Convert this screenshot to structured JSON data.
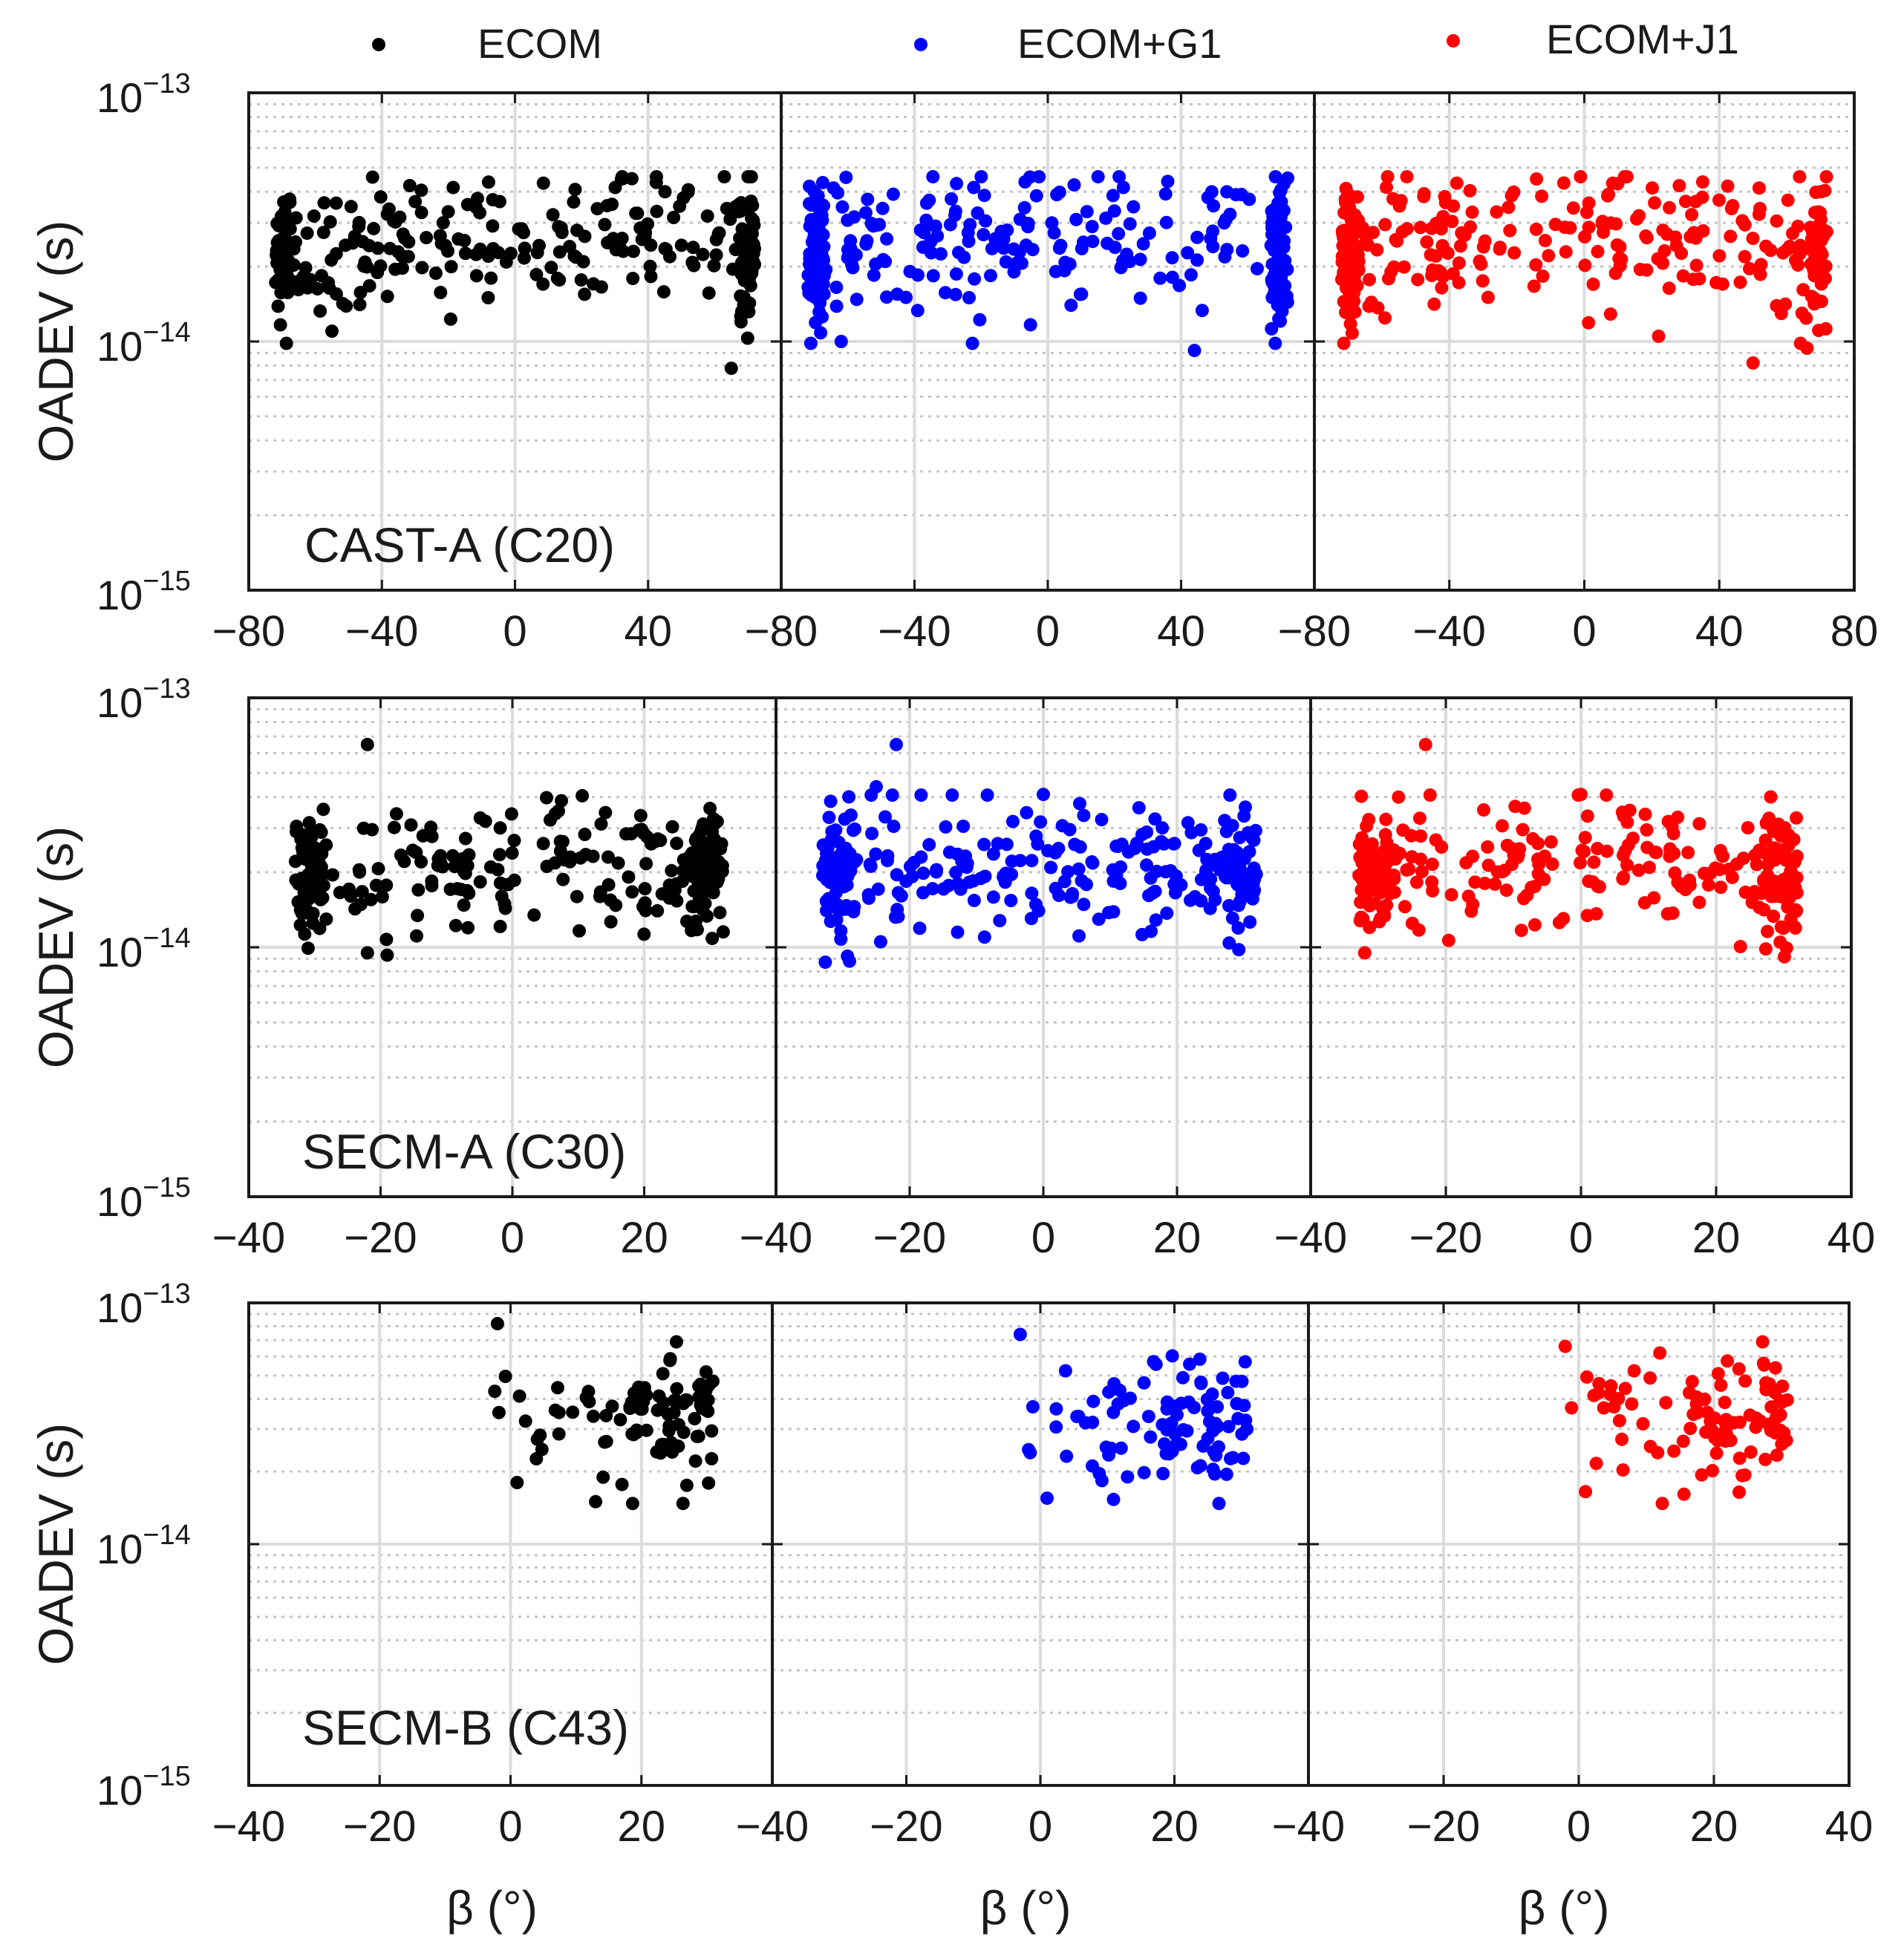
{
  "legend": [
    {
      "label": "ECOM",
      "color": "#000000"
    },
    {
      "label": "ECOM+G1",
      "color": "#0000ff"
    },
    {
      "label": "ECOM+J1",
      "color": "#ff0000"
    }
  ],
  "chart_data": {
    "type": "scatter",
    "ylabel": "OADEV (s)",
    "xlabel": "β (°)",
    "yscale": "log",
    "ylim": [
      1e-15,
      1e-13
    ],
    "ytick_labels": [
      "10",
      "10",
      "10"
    ],
    "ytick_exponents": [
      "−15",
      "−14",
      "−13"
    ],
    "series_colors": [
      "#000000",
      "#0000ff",
      "#ff0000"
    ],
    "rows": [
      {
        "title": "CAST-A (C20)",
        "xlim": [
          -80,
          80
        ],
        "xticks": [
          -80,
          -40,
          0,
          40,
          80
        ],
        "xtick_labels": [
          "−80",
          "−40",
          "0",
          "40",
          "80"
        ],
        "beta_range": [
          -72,
          72
        ],
        "median": 2.2e-14,
        "spread": 0.32,
        "n": 320,
        "hump": 0.35,
        "outliers": [
          {
            "panel": 0,
            "x": 65,
            "y": 7.8e-15
          },
          {
            "panel": 0,
            "x": -55,
            "y": 1.1e-14
          },
          {
            "panel": 0,
            "x": 32,
            "y": 4.5e-14
          },
          {
            "panel": 1,
            "x": 36,
            "y": 4.4e-14
          },
          {
            "panel": 1,
            "x": 44,
            "y": 9.2e-15
          },
          {
            "panel": 1,
            "x": -62,
            "y": 1e-14
          },
          {
            "panel": 2,
            "x": 50,
            "y": 8.2e-15
          },
          {
            "panel": 2,
            "x": 66,
            "y": 9.4e-15
          },
          {
            "panel": 2,
            "x": 22,
            "y": 1.05e-14
          },
          {
            "panel": 2,
            "x": 35,
            "y": 3.8e-14
          }
        ]
      },
      {
        "title": "SECM-A (C30)",
        "xlim": [
          -40,
          40
        ],
        "xticks": [
          -40,
          -20,
          0,
          20,
          40
        ],
        "xtick_labels": [
          "−40",
          "−20",
          "0",
          "20",
          "40"
        ],
        "beta_range": [
          -33,
          32
        ],
        "median": 1.95e-14,
        "spread": 0.28,
        "n": 300,
        "hump": 0.2,
        "outliers": [
          {
            "panel": 0,
            "x": -22,
            "y": 6.5e-14
          },
          {
            "panel": 0,
            "x": -22,
            "y": 9.5e-15
          },
          {
            "panel": 0,
            "x": -19,
            "y": 9.3e-15
          },
          {
            "panel": 1,
            "x": -22,
            "y": 6.5e-14
          },
          {
            "panel": 1,
            "x": -25,
            "y": 4.4e-14
          },
          {
            "panel": 1,
            "x": 0,
            "y": 4.1e-14
          },
          {
            "panel": 1,
            "x": -29,
            "y": 8.8e-15
          },
          {
            "panel": 2,
            "x": -23,
            "y": 6.5e-14
          },
          {
            "panel": 2,
            "x": -27,
            "y": 4e-14
          },
          {
            "panel": 2,
            "x": 0,
            "y": 4.1e-14
          },
          {
            "panel": 2,
            "x": -32,
            "y": 9.5e-15
          }
        ]
      },
      {
        "title": "SECM-B (C43)",
        "xlim": [
          -40,
          40
        ],
        "xticks": [
          -40,
          -20,
          0,
          20,
          40
        ],
        "xtick_labels": [
          "−40",
          "−20",
          "0",
          "20",
          "40"
        ],
        "beta_range": [
          -3,
          31
        ],
        "median": 3.3e-14,
        "spread": 0.3,
        "n": 95,
        "hump": 0.0,
        "outliers": [
          {
            "panel": 0,
            "x": -2,
            "y": 8.2e-14
          },
          {
            "panel": 0,
            "x": 13,
            "y": 1.5e-14
          },
          {
            "panel": 0,
            "x": 1,
            "y": 1.8e-14
          },
          {
            "panel": 1,
            "x": -3,
            "y": 7.4e-14
          },
          {
            "panel": 1,
            "x": 1,
            "y": 1.55e-14
          },
          {
            "panel": 1,
            "x": 13,
            "y": 1.9e-14
          },
          {
            "panel": 2,
            "x": -2,
            "y": 6.6e-14
          },
          {
            "panel": 2,
            "x": 1,
            "y": 1.65e-14
          },
          {
            "panel": 2,
            "x": 12,
            "y": 6.2e-14
          }
        ]
      }
    ]
  }
}
